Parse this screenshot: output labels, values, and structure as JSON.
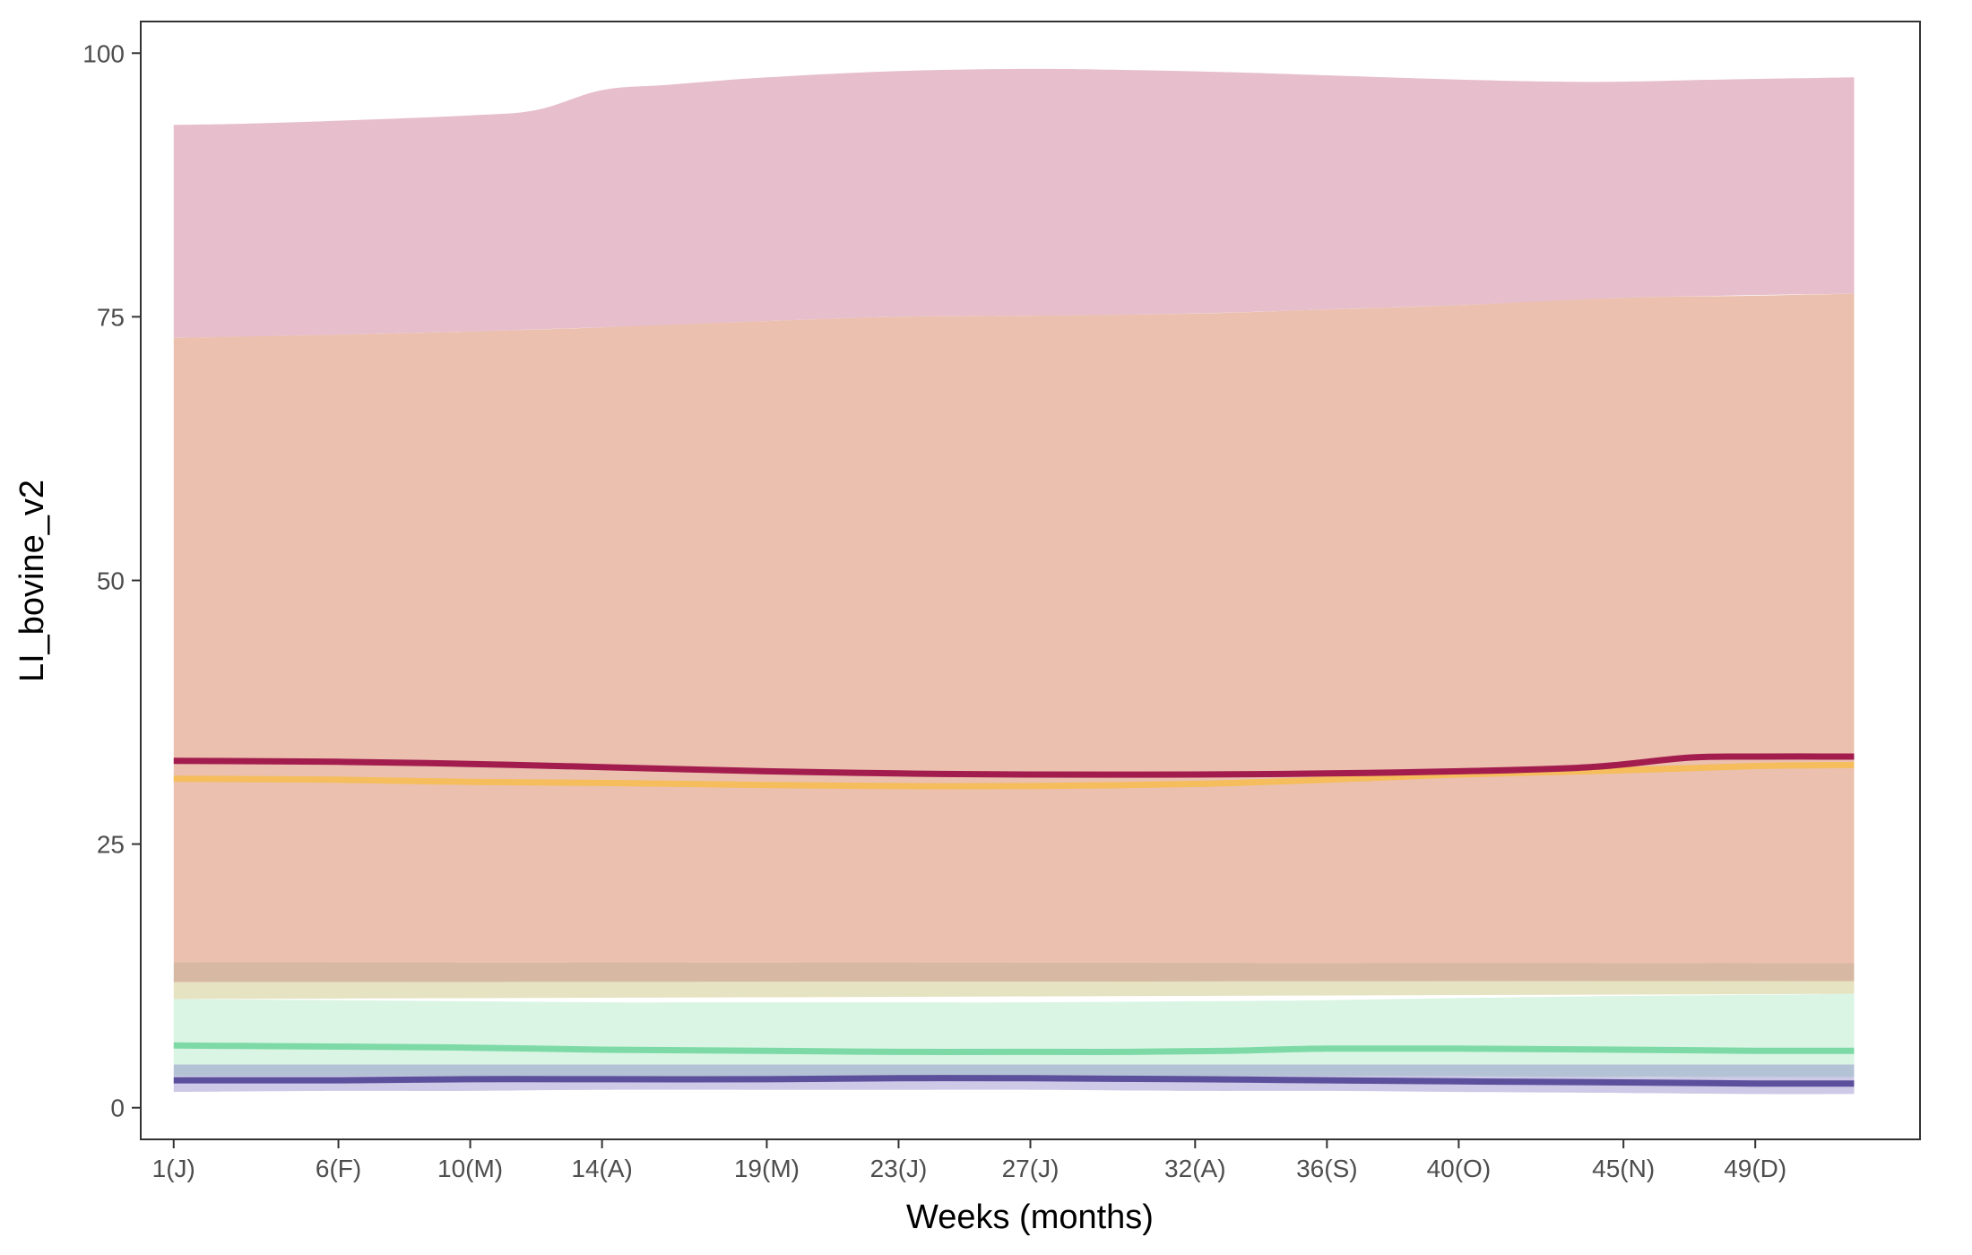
{
  "chart_data": {
    "type": "area",
    "title": "",
    "xlabel": "Weeks (months)",
    "ylabel": "LI_bovine_v2",
    "xlim": [
      0,
      54
    ],
    "ylim": [
      -3,
      103
    ],
    "grid": false,
    "legend": "none",
    "x_ticks": [
      {
        "x": 1,
        "label": "1(J)"
      },
      {
        "x": 6,
        "label": "6(F)"
      },
      {
        "x": 10,
        "label": "10(M)"
      },
      {
        "x": 14,
        "label": "14(A)"
      },
      {
        "x": 19,
        "label": "19(M)"
      },
      {
        "x": 23,
        "label": "23(J)"
      },
      {
        "x": 27,
        "label": "27(J)"
      },
      {
        "x": 32,
        "label": "32(A)"
      },
      {
        "x": 36,
        "label": "36(S)"
      },
      {
        "x": 40,
        "label": "40(O)"
      },
      {
        "x": 45,
        "label": "45(N)"
      },
      {
        "x": 49,
        "label": "49(D)"
      }
    ],
    "y_ticks": [
      {
        "y": 0,
        "label": "0"
      },
      {
        "y": 25,
        "label": "25"
      },
      {
        "y": 50,
        "label": "50"
      },
      {
        "y": 75,
        "label": "75"
      },
      {
        "y": 100,
        "label": "100"
      }
    ],
    "bands": [
      {
        "color": "#e7bfcc",
        "x": [
          1,
          3,
          6,
          10,
          12,
          14,
          16,
          19,
          23,
          27,
          30,
          33,
          36,
          40,
          43,
          45,
          48,
          52
        ],
        "upper": [
          93.2,
          93.3,
          93.6,
          94.1,
          94.6,
          96.5,
          97.0,
          97.7,
          98.3,
          98.5,
          98.4,
          98.2,
          97.9,
          97.5,
          97.3,
          97.3,
          97.5,
          97.7
        ],
        "lower": [
          73.0,
          73.1,
          73.3,
          73.6,
          73.8,
          74.0,
          74.2,
          74.6,
          75.0,
          75.1,
          75.2,
          75.4,
          75.7,
          76.1,
          76.5,
          76.8,
          77.0,
          77.2
        ]
      },
      {
        "color": "#ebc0af",
        "x": [
          1,
          6,
          10,
          14,
          19,
          23,
          27,
          32,
          36,
          40,
          45,
          49,
          52
        ],
        "upper": [
          73.0,
          73.3,
          73.6,
          74.0,
          74.6,
          75.0,
          75.1,
          75.3,
          75.7,
          76.1,
          76.8,
          77.0,
          77.2
        ],
        "lower": [
          13.8,
          13.7,
          13.6,
          13.5,
          13.5,
          13.4,
          13.4,
          13.4,
          13.5,
          13.5,
          13.6,
          13.6,
          13.7
        ]
      },
      {
        "color": "#d7b9a3",
        "x": [
          1,
          52
        ],
        "upper": [
          13.8,
          13.7
        ],
        "lower": [
          11.9,
          12.0
        ]
      },
      {
        "color": "#e5e3c1",
        "x": [
          1,
          52
        ],
        "upper": [
          11.9,
          12.0
        ],
        "lower": [
          10.3,
          10.8
        ]
      },
      {
        "color": "#dbf5e5",
        "x": [
          1,
          6,
          10,
          14,
          19,
          23,
          27,
          32,
          36,
          40,
          45,
          49,
          52
        ],
        "upper": [
          10.3,
          10.2,
          10.1,
          10.0,
          10.0,
          10.0,
          10.0,
          10.1,
          10.2,
          10.4,
          10.6,
          10.7,
          10.8
        ],
        "lower": [
          4.1,
          4.1,
          4.1,
          4.1,
          4.1,
          4.1,
          4.1,
          4.1,
          4.1,
          4.1,
          4.1,
          4.1,
          4.1
        ]
      },
      {
        "color": "#b3c3d5",
        "x": [
          1,
          52
        ],
        "upper": [
          4.1,
          4.1
        ],
        "lower": [
          3.0,
          2.9
        ]
      },
      {
        "color": "#cdc9e6",
        "x": [
          1,
          6,
          10,
          14,
          19,
          23,
          27,
          32,
          36,
          40,
          45,
          49,
          52
        ],
        "upper": [
          3.0,
          3.0,
          3.0,
          3.0,
          3.0,
          3.0,
          3.0,
          3.0,
          3.0,
          3.0,
          2.9,
          2.9,
          2.9
        ],
        "lower": [
          1.5,
          1.6,
          1.6,
          1.7,
          1.7,
          1.7,
          1.7,
          1.6,
          1.6,
          1.5,
          1.4,
          1.3,
          1.3
        ]
      }
    ],
    "series": [
      {
        "color": "#f5bd5c",
        "x": [
          1,
          6,
          10,
          14,
          19,
          23,
          27,
          32,
          36,
          40,
          45,
          49,
          52
        ],
        "values": [
          31.2,
          31.1,
          30.9,
          30.8,
          30.6,
          30.5,
          30.5,
          30.7,
          31.1,
          31.6,
          32.0,
          32.4,
          32.5
        ]
      },
      {
        "color": "#a31c4e",
        "x": [
          1,
          6,
          10,
          14,
          19,
          23,
          27,
          32,
          36,
          40,
          44,
          47,
          49,
          52
        ],
        "values": [
          32.9,
          32.8,
          32.6,
          32.3,
          31.9,
          31.7,
          31.6,
          31.6,
          31.7,
          31.9,
          32.3,
          33.2,
          33.3,
          33.3
        ]
      },
      {
        "color": "#7ddaa6",
        "x": [
          1,
          6,
          10,
          14,
          19,
          23,
          27,
          30,
          33,
          36,
          40,
          45,
          49,
          52
        ],
        "values": [
          5.9,
          5.8,
          5.7,
          5.5,
          5.4,
          5.3,
          5.3,
          5.3,
          5.4,
          5.6,
          5.6,
          5.5,
          5.4,
          5.4
        ]
      },
      {
        "color": "#5c4f9c",
        "x": [
          1,
          6,
          10,
          14,
          19,
          23,
          27,
          32,
          36,
          40,
          45,
          49,
          52
        ],
        "values": [
          2.6,
          2.6,
          2.7,
          2.7,
          2.7,
          2.8,
          2.8,
          2.7,
          2.6,
          2.5,
          2.4,
          2.3,
          2.3
        ]
      }
    ]
  }
}
